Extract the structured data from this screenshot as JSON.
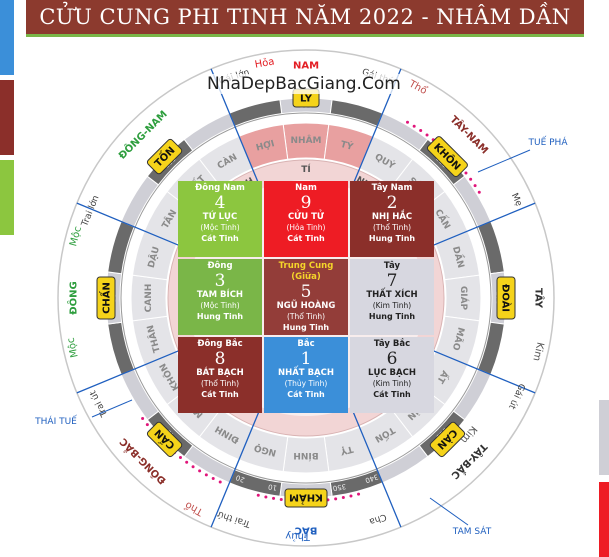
{
  "header": {
    "title": "CỬU CUNG PHI TINH NĂM 2022 - NHÂM DẦN"
  },
  "watermark": "NhaDepBacGiang.Com",
  "grid": [
    {
      "dir": "Đông Nam",
      "num": "4",
      "star": "TỨ LỤC",
      "elem": "(Mộc Tinh)",
      "luck": "Cát Tinh",
      "bg": "#8cc63f"
    },
    {
      "dir": "Nam",
      "num": "9",
      "star": "CỬU TỬ",
      "elem": "(Hỏa Tinh)",
      "luck": "Cát Tinh",
      "bg": "#ee1c24"
    },
    {
      "dir": "Tây Nam",
      "num": "2",
      "star": "NHỊ HẮC",
      "elem": "(Thổ Tinh)",
      "luck": "Hung Tinh",
      "bg": "#8b2f2a"
    },
    {
      "dir": "Đông",
      "num": "3",
      "star": "TAM BÍCH",
      "elem": "(Mộc Tinh)",
      "luck": "Hung Tinh",
      "bg": "#7ab648"
    },
    {
      "dir": "Trung Cung (Giữa)",
      "num": "5",
      "star": "NGŨ HOÀNG",
      "elem": "(Thổ Tinh)",
      "luck": "Hung Tinh",
      "bg": "#8b2f2a"
    },
    {
      "dir": "Tây",
      "num": "7",
      "star": "THẤT XÍCH",
      "elem": "(Kim Tinh)",
      "luck": "Hung Tinh",
      "bg": "#d7d7e0",
      "dark": true
    },
    {
      "dir": "Đông Bắc",
      "num": "8",
      "star": "BÁT BẠCH",
      "elem": "(Thổ Tinh)",
      "luck": "Cát Tinh",
      "bg": "#8b2f2a"
    },
    {
      "dir": "Bắc",
      "num": "1",
      "star": "NHẤT BẠCH",
      "elem": "(Thủy Tinh)",
      "luck": "Cát Tinh",
      "bg": "#3b8fd9"
    },
    {
      "dir": "Tây Bắc",
      "num": "6",
      "star": "LỤC BẠCH",
      "elem": "(Kim Tinh)",
      "luck": "Cát Tinh",
      "bg": "#d7d7e0",
      "dark": true
    }
  ],
  "directions": [
    {
      "text": "NAM",
      "color": "#e31e24"
    },
    {
      "text": "TÂY",
      "color": "#333333"
    },
    {
      "text": "BẮC",
      "color": "#1f5fbf"
    },
    {
      "text": "ĐÔNG",
      "color": "#2e9e3e"
    },
    {
      "text": "ĐÔNG-NAM",
      "color": "#2e9e3e"
    },
    {
      "text": "TÂY-NAM",
      "color": "#8b2f2a"
    },
    {
      "text": "TÂY-BẮC",
      "color": "#333333"
    },
    {
      "text": "ĐÔNG-BẮC",
      "color": "#8b2f2a"
    }
  ],
  "trigrams": [
    "LY",
    "KHÔN",
    "ĐOÀI",
    "CÀN",
    "KHẢM",
    "CẤN",
    "CHẤN",
    "TỐN"
  ],
  "members": [
    {
      "text": "Gái lớn",
      "color": "#444444"
    },
    {
      "text": "Gái thứ",
      "color": "#444444"
    },
    {
      "text": "Mẹ",
      "color": "#444444"
    },
    {
      "text": "Gái út",
      "color": "#444444"
    },
    {
      "text": "Cha",
      "color": "#444444"
    },
    {
      "text": "Trai thứ",
      "color": "#444444"
    },
    {
      "text": "Trai út",
      "color": "#444444"
    },
    {
      "text": "Trai lớn",
      "color": "#444444"
    }
  ],
  "elements": [
    {
      "text": "Hỏa",
      "color": "#e31e24"
    },
    {
      "text": "Thổ",
      "color": "#c0504d"
    },
    {
      "text": "Kim",
      "color": "#555555"
    },
    {
      "text": "Kim",
      "color": "#555555"
    },
    {
      "text": "Thủy",
      "color": "#1f5fbf"
    },
    {
      "text": "Thổ",
      "color": "#c0504d"
    },
    {
      "text": "Mộc",
      "color": "#2e9e3e"
    },
    {
      "text": "Mộc",
      "color": "#2e9e3e"
    }
  ],
  "stars_outside": [
    {
      "text": "TUẾ PHÁ",
      "color": "#1f5fbf"
    },
    {
      "text": "TAM SÁT",
      "color": "#1f5fbf"
    },
    {
      "text": "THÁI TUẾ",
      "color": "#1f5fbf"
    }
  ],
  "mountains": [
    "BÍNH",
    "NGỌ",
    "ĐINH",
    "MÙI",
    "KHÔN",
    "THÂN",
    "CANH",
    "DẬU",
    "TÂN",
    "TUẤT",
    "CÀN",
    "HỢI",
    "NHÂM",
    "TÝ",
    "QUÝ",
    "SỬU",
    "CẤN",
    "DẦN",
    "GIÁP",
    "MÃO",
    "ẤT",
    "THÌN",
    "TỐN",
    "TỴ"
  ],
  "degrees": [
    "180",
    "225",
    "270",
    "315",
    "340",
    "350",
    "0",
    "10",
    "20",
    "45",
    "90",
    "135"
  ],
  "inner_text": [
    "TÍ",
    "ĐINH",
    "NHÂM"
  ],
  "colors": {
    "banner": "#8c3a2e",
    "banner_line": "#7ab648",
    "ring_dark": "#555555",
    "ring_light": "#c8c8c8",
    "accent_pink": "#e0157a"
  }
}
